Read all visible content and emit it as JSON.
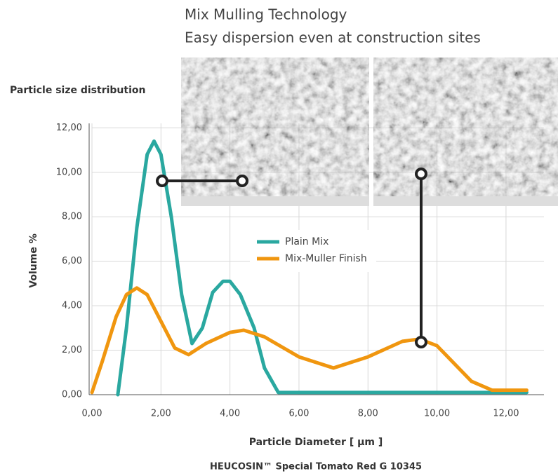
{
  "chart_data": {
    "type": "line",
    "title": "Mix Mulling Technology",
    "subtitle": "Easy dispersion even at construction sites",
    "chart_label": "Particle size distribution",
    "x_label": "Particle Diameter [ µm ]",
    "y_label": "Volume %",
    "caption": "HEUCOSIN™ Special Tomato Red G 10345",
    "xlim": [
      0,
      13.1
    ],
    "ylim": [
      0,
      12.2
    ],
    "xticks": [
      {
        "value": 0,
        "label": "0,00"
      },
      {
        "value": 2,
        "label": "2,00"
      },
      {
        "value": 4,
        "label": "4,00"
      },
      {
        "value": 6,
        "label": "6,00"
      },
      {
        "value": 8,
        "label": "8,00"
      },
      {
        "value": 10,
        "label": "10,00"
      },
      {
        "value": 12,
        "label": "12,00"
      }
    ],
    "yticks": [
      {
        "value": 0,
        "label": "0,00"
      },
      {
        "value": 2,
        "label": "2,00"
      },
      {
        "value": 4,
        "label": "4,00"
      },
      {
        "value": 6,
        "label": "6,00"
      },
      {
        "value": 8,
        "label": "8,00"
      },
      {
        "value": 10,
        "label": "10,00"
      },
      {
        "value": 12,
        "label": "12,00"
      }
    ],
    "grid": true,
    "series": [
      {
        "name": "Plain Mix",
        "color": "#2aa8a0",
        "x": [
          0.75,
          1.0,
          1.3,
          1.6,
          1.8,
          2.0,
          2.3,
          2.6,
          2.9,
          3.2,
          3.5,
          3.8,
          4.0,
          4.3,
          4.7,
          5.0,
          5.4,
          6.0,
          8.0,
          10.0,
          12.0,
          12.6
        ],
        "values": [
          0,
          3,
          7.5,
          10.8,
          11.4,
          10.8,
          8,
          4.5,
          2.3,
          3,
          4.6,
          5.1,
          5.1,
          4.5,
          3,
          1.2,
          0.1,
          0.1,
          0.1,
          0.1,
          0.1,
          0.1
        ]
      },
      {
        "name": "Mix-Muller Finish",
        "color": "#f0960f",
        "x": [
          0,
          0.3,
          0.7,
          1.0,
          1.3,
          1.6,
          2.0,
          2.4,
          2.8,
          3.3,
          4.0,
          4.4,
          5.0,
          6.0,
          7.0,
          8.0,
          9.0,
          9.5,
          10.0,
          10.5,
          11.0,
          11.6,
          12.6
        ],
        "values": [
          0.1,
          1.5,
          3.5,
          4.5,
          4.8,
          4.5,
          3.3,
          2.1,
          1.8,
          2.3,
          2.8,
          2.9,
          2.6,
          1.7,
          1.2,
          1.7,
          2.4,
          2.5,
          2.2,
          1.4,
          0.6,
          0.2,
          0.2
        ]
      }
    ]
  }
}
